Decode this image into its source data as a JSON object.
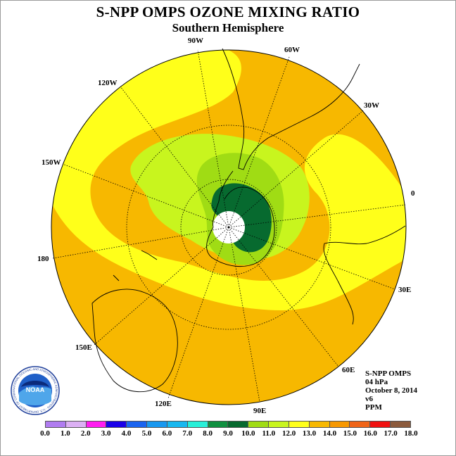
{
  "header": {
    "title": "S-NPP OMPS OZONE MIXING RATIO",
    "subtitle": "Southern Hemisphere"
  },
  "map": {
    "projection": "south polar stereographic",
    "longitude_labels": [
      "90W",
      "60W",
      "120W",
      "30W",
      "150W",
      "0",
      "180",
      "30E",
      "150E",
      "60E",
      "120E",
      "90E"
    ],
    "colors": {
      "orange": "#f7b800",
      "yellow": "#ffff1a",
      "light_green": "#c8f51e",
      "green": "#a0dc14",
      "dark_green": "#076a2f",
      "pole_fill": "#ffffff"
    }
  },
  "info": {
    "instrument": "S-NPP OMPS",
    "level": "04 hPa",
    "date": "October 8, 2014",
    "version": "v6",
    "units": "PPM"
  },
  "colorbar": {
    "ticks": [
      "0.0",
      "1.0",
      "2.0",
      "3.0",
      "4.0",
      "5.0",
      "6.0",
      "7.0",
      "8.0",
      "9.0",
      "10.0",
      "11.0",
      "12.0",
      "13.0",
      "14.0",
      "15.0",
      "16.0",
      "17.0",
      "18.0"
    ],
    "colors": [
      "#b07cf0",
      "#dcb0f4",
      "#ff1cf0",
      "#1a00e8",
      "#1a64f0",
      "#1898f0",
      "#18b8f0",
      "#28f0d8",
      "#109040",
      "#076a2f",
      "#a0dc14",
      "#c8f51e",
      "#ffff1a",
      "#f7b800",
      "#f79800",
      "#f06418",
      "#f01010",
      "#8b5a3c"
    ]
  },
  "logo": {
    "text": "NOAA",
    "ring_text": "NATIONAL OCEANIC AND ATMOSPHERIC ADMINISTRATION · U.S. DEPARTMENT OF COMMERCE"
  }
}
